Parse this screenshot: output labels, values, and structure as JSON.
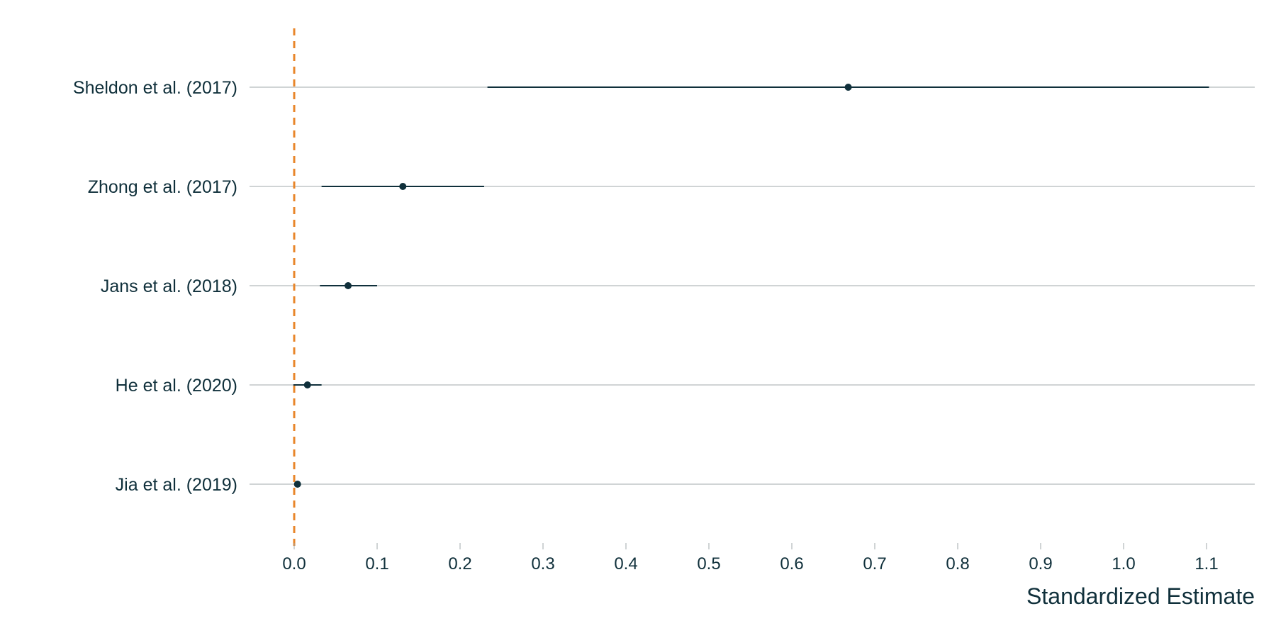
{
  "chart_data": {
    "type": "forest",
    "xlabel": "Standardized Estimate",
    "xlim": [
      -0.055,
      1.16
    ],
    "x_ticks": [
      0.0,
      0.1,
      0.2,
      0.3,
      0.4,
      0.5,
      0.6,
      0.7,
      0.8,
      0.9,
      1.0,
      1.1
    ],
    "x_tick_labels": [
      "0.0",
      "0.1",
      "0.2",
      "0.3",
      "0.4",
      "0.5",
      "0.6",
      "0.7",
      "0.8",
      "0.9",
      "1.0",
      "1.1"
    ],
    "reference_line": {
      "x": 0.0,
      "style": "dashed",
      "color": "#e8862a"
    },
    "grid": "horizontal",
    "studies": [
      {
        "label": "Sheldon et al. (2017)",
        "estimate": 0.668,
        "ci_low": 0.233,
        "ci_high": 1.103
      },
      {
        "label": "Zhong et al. (2017)",
        "estimate": 0.131,
        "ci_low": 0.033,
        "ci_high": 0.229
      },
      {
        "label": "Jans et al. (2018)",
        "estimate": 0.065,
        "ci_low": 0.031,
        "ci_high": 0.1
      },
      {
        "label": "He et al. (2020)",
        "estimate": 0.016,
        "ci_low": -0.001,
        "ci_high": 0.033
      },
      {
        "label": "Jia et al. (2019)",
        "estimate": 0.004,
        "ci_low": 0.002,
        "ci_high": 0.006
      }
    ],
    "colors": {
      "point": "#10303b",
      "interval": "#10303b",
      "gridline": "#a0a8ab",
      "text": "#10303b"
    }
  }
}
